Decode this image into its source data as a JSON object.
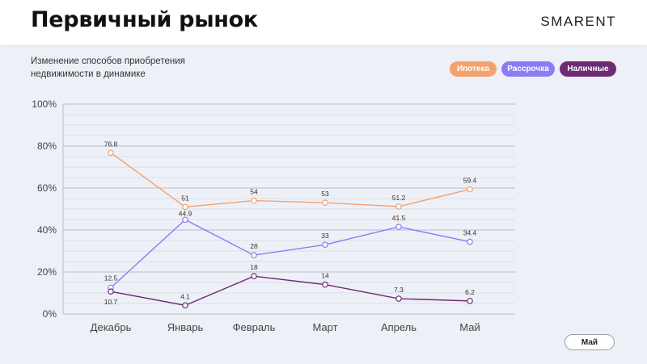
{
  "header": {
    "title": "Первичный рынок",
    "brand": "SMARENT"
  },
  "subtitle": "Изменение способов приобретения недвижимости в динамике",
  "period_button": "Май",
  "colors": {
    "ipoteka": "#f4a26e",
    "rassrochka": "#8b7cf3",
    "nalichnye": "#6e2a73"
  },
  "chart_data": {
    "type": "line",
    "categories": [
      "Декабрь",
      "Январь",
      "Февраль",
      "Март",
      "Апрель",
      "Май"
    ],
    "ylim": [
      0,
      100
    ],
    "yticks": [
      "0%",
      "20%",
      "40%",
      "60%",
      "80%",
      "100%"
    ],
    "grid": true,
    "legend_position": "top-right",
    "series": [
      {
        "name": "Ипотека",
        "color": "#f4a26e",
        "values": [
          76.8,
          51,
          54,
          53,
          51.2,
          59.4
        ],
        "labels": [
          "76.8",
          "51",
          "54",
          "53",
          "51.2",
          "59.4"
        ]
      },
      {
        "name": "Рассрочка",
        "color": "#8b7cf3",
        "values": [
          12.5,
          44.9,
          28,
          33,
          41.5,
          34.4
        ],
        "labels": [
          "12.5",
          "44.9",
          "28",
          "33",
          "41.5",
          "34.4"
        ]
      },
      {
        "name": "Наличные",
        "color": "#6e2a73",
        "values": [
          10.7,
          4.1,
          18,
          14,
          7.3,
          6.2
        ],
        "labels": [
          "10.7",
          "4.1",
          "18",
          "14",
          "7.3",
          "6.2"
        ]
      }
    ]
  }
}
